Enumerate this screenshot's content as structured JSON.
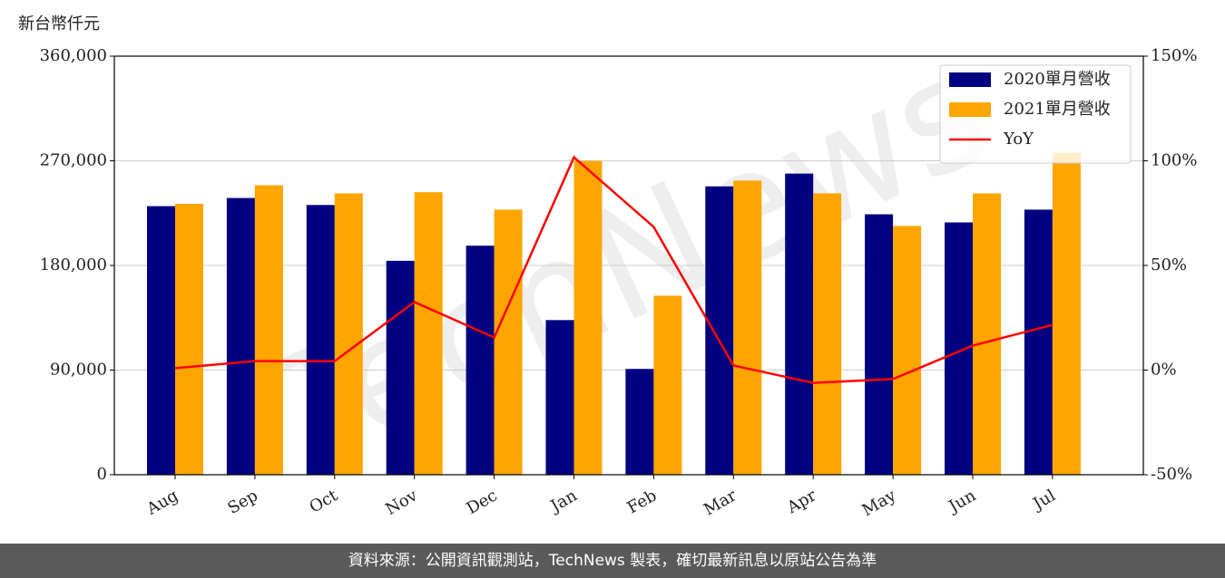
{
  "chart_data": {
    "type": "bar",
    "y_axis_label": "新台幣仟元",
    "watermark": "TechNews",
    "categories": [
      "Aug",
      "Sep",
      "Oct",
      "Nov",
      "Dec",
      "Jan",
      "Feb",
      "Mar",
      "Apr",
      "May",
      "Jun",
      "Jul"
    ],
    "series": [
      {
        "name": "2020單月營收",
        "color": "#000080",
        "values": [
          231000,
          238000,
          232000,
          184000,
          197000,
          133000,
          91000,
          248000,
          259000,
          224000,
          217000,
          228000
        ]
      },
      {
        "name": "2021單月營收",
        "color": "#ffa500",
        "values": [
          233000,
          249000,
          242000,
          243000,
          228000,
          270000,
          154000,
          253000,
          242000,
          214000,
          242000,
          277000
        ]
      },
      {
        "name": "YoY",
        "type": "line",
        "axis": "y2",
        "color": "#ff0000",
        "values": [
          0.9,
          4.3,
          4.3,
          32.5,
          15.6,
          101.7,
          68.4,
          2.2,
          -6.1,
          -4.3,
          11.7,
          21.6
        ]
      }
    ],
    "ylim": [
      0,
      360000
    ],
    "yticks": [
      0,
      {
        "value": 90000,
        "label": "90,000"
      },
      {
        "value": 180000,
        "label": "180,000"
      },
      {
        "value": 270000,
        "label": "270,000"
      },
      {
        "value": 360000,
        "label": "360,000"
      }
    ],
    "y2lim": [
      -50,
      150
    ],
    "y2ticks": [
      {
        "value": -50,
        "label": "-50%"
      },
      {
        "value": 0,
        "label": "0%"
      },
      {
        "value": 50,
        "label": "50%"
      },
      {
        "value": 100,
        "label": "100%"
      },
      {
        "value": 150,
        "label": "150%"
      }
    ],
    "grid": true,
    "legend": "upper right",
    "source": "資料來源：公開資訊觀測站，TechNews 製表，確切最新訊息以原站公告為準"
  }
}
